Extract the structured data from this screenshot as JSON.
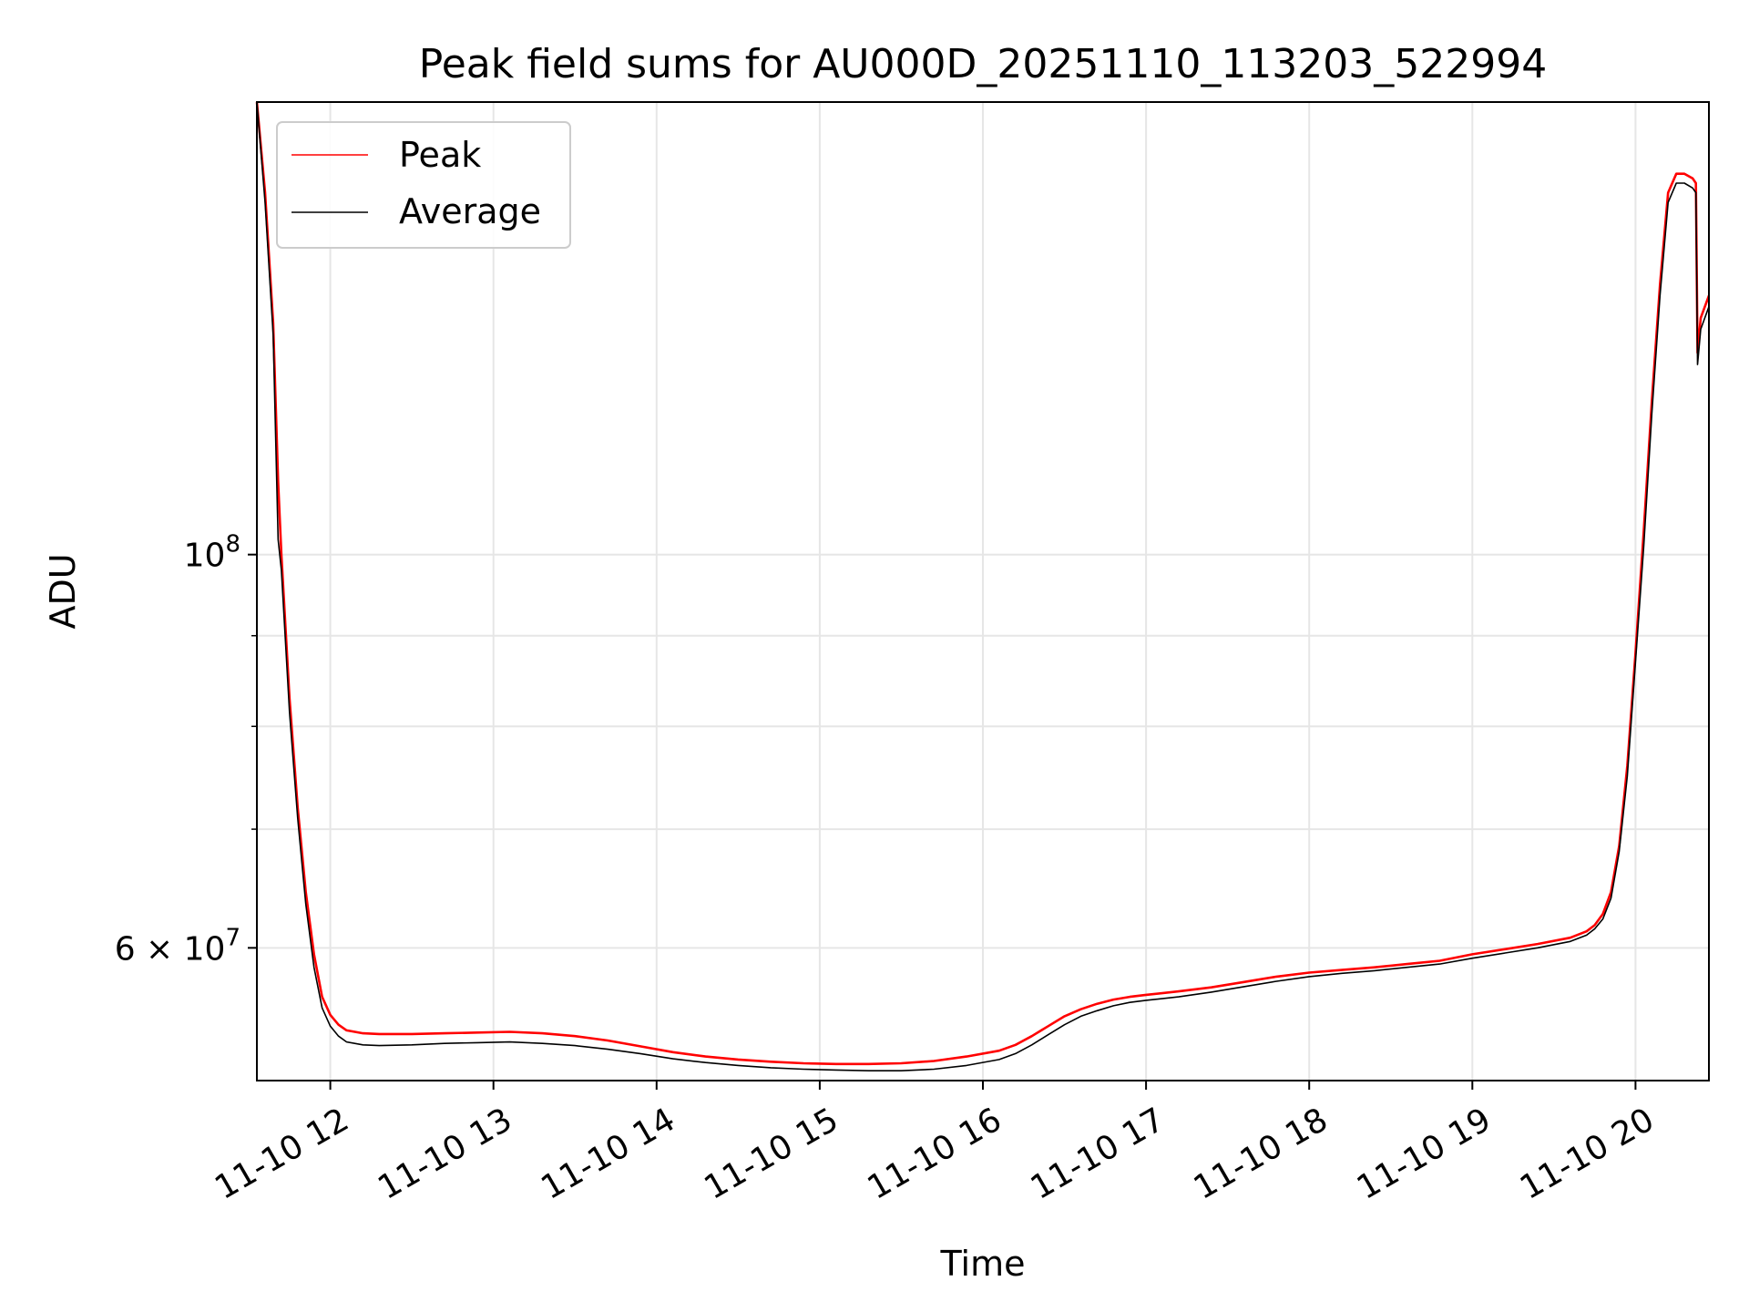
{
  "chart_data": {
    "type": "line",
    "title": "Peak field sums for AU000D_20251110_113203_522994",
    "xlabel": "Time",
    "ylabel": "ADU",
    "xlim": [
      11.55,
      20.45
    ],
    "ylim": [
      50500000,
      180000000
    ],
    "yscale": "log",
    "grid": true,
    "legend_position": "upper-left",
    "x_ticks": [
      {
        "value": 12,
        "label": "11-10 12"
      },
      {
        "value": 13,
        "label": "11-10 13"
      },
      {
        "value": 14,
        "label": "11-10 14"
      },
      {
        "value": 15,
        "label": "11-10 15"
      },
      {
        "value": 16,
        "label": "11-10 16"
      },
      {
        "value": 17,
        "label": "11-10 17"
      },
      {
        "value": 18,
        "label": "11-10 18"
      },
      {
        "value": 19,
        "label": "11-10 19"
      },
      {
        "value": 20,
        "label": "11-10 20"
      }
    ],
    "y_major_ticks": [
      {
        "value": 60000000,
        "base": "6 × 10",
        "exp": "7"
      },
      {
        "value": 100000000,
        "base": "10",
        "exp": "8"
      }
    ],
    "y_minor_ticks": [
      70000000,
      80000000,
      90000000,
      200000000
    ],
    "series": [
      {
        "name": "Peak",
        "color": "#ff0000",
        "x": [
          11.55,
          11.6,
          11.65,
          11.68,
          11.7,
          11.75,
          11.8,
          11.85,
          11.9,
          11.95,
          12.0,
          12.05,
          12.1,
          12.2,
          12.3,
          12.5,
          12.7,
          12.9,
          13.1,
          13.3,
          13.5,
          13.7,
          13.9,
          14.1,
          14.3,
          14.5,
          14.7,
          14.9,
          15.1,
          15.3,
          15.5,
          15.7,
          15.9,
          16.1,
          16.2,
          16.3,
          16.4,
          16.5,
          16.6,
          16.7,
          16.8,
          16.9,
          17.0,
          17.2,
          17.4,
          17.6,
          17.8,
          18.0,
          18.2,
          18.4,
          18.6,
          18.8,
          19.0,
          19.2,
          19.4,
          19.6,
          19.7,
          19.75,
          19.8,
          19.85,
          19.9,
          19.95,
          20.0,
          20.05,
          20.1,
          20.15,
          20.2,
          20.25,
          20.3,
          20.35,
          20.37,
          20.38,
          20.4,
          20.45
        ],
        "y": [
          180000000,
          160000000,
          135000000,
          110000000,
          100000000,
          83000000,
          72000000,
          64500000,
          59500000,
          56300000,
          55000000,
          54300000,
          53900000,
          53700000,
          53650000,
          53650000,
          53700000,
          53750000,
          53800000,
          53700000,
          53500000,
          53200000,
          52800000,
          52400000,
          52100000,
          51900000,
          51750000,
          51650000,
          51600000,
          51600000,
          51650000,
          51800000,
          52100000,
          52500000,
          52900000,
          53500000,
          54200000,
          54900000,
          55400000,
          55800000,
          56100000,
          56300000,
          56450000,
          56700000,
          57000000,
          57400000,
          57800000,
          58100000,
          58300000,
          58500000,
          58750000,
          59000000,
          59500000,
          59900000,
          60300000,
          60800000,
          61300000,
          61800000,
          62700000,
          64500000,
          68500000,
          76000000,
          88000000,
          103000000,
          122000000,
          142000000,
          160000000,
          164000000,
          164000000,
          163000000,
          162000000,
          130000000,
          136000000,
          140000000
        ]
      },
      {
        "name": "Average",
        "color": "#000000",
        "x": [
          11.55,
          11.6,
          11.65,
          11.68,
          11.7,
          11.75,
          11.8,
          11.85,
          11.9,
          11.95,
          12.0,
          12.05,
          12.1,
          12.2,
          12.3,
          12.5,
          12.7,
          12.9,
          13.1,
          13.3,
          13.5,
          13.7,
          13.9,
          14.1,
          14.3,
          14.5,
          14.7,
          14.9,
          15.1,
          15.3,
          15.5,
          15.7,
          15.9,
          16.1,
          16.2,
          16.3,
          16.4,
          16.5,
          16.6,
          16.7,
          16.8,
          16.9,
          17.0,
          17.2,
          17.4,
          17.6,
          17.8,
          18.0,
          18.2,
          18.4,
          18.6,
          18.8,
          19.0,
          19.2,
          19.4,
          19.6,
          19.7,
          19.75,
          19.8,
          19.85,
          19.9,
          19.95,
          20.0,
          20.05,
          20.1,
          20.15,
          20.2,
          20.25,
          20.3,
          20.35,
          20.37,
          20.38,
          20.4,
          20.45
        ],
        "y": [
          180000000,
          158000000,
          133000000,
          102000000,
          98000000,
          81500000,
          71000000,
          63500000,
          58500000,
          55500000,
          54200000,
          53500000,
          53100000,
          52900000,
          52850000,
          52900000,
          53000000,
          53050000,
          53100000,
          53000000,
          52850000,
          52600000,
          52300000,
          51950000,
          51700000,
          51500000,
          51350000,
          51250000,
          51200000,
          51150000,
          51150000,
          51250000,
          51500000,
          51900000,
          52300000,
          52900000,
          53600000,
          54300000,
          54900000,
          55300000,
          55650000,
          55900000,
          56050000,
          56300000,
          56650000,
          57050000,
          57450000,
          57800000,
          58050000,
          58250000,
          58500000,
          58750000,
          59200000,
          59600000,
          60000000,
          60500000,
          61000000,
          61500000,
          62300000,
          64000000,
          68000000,
          75000000,
          87000000,
          101000000,
          120000000,
          140000000,
          158000000,
          162000000,
          162000000,
          161000000,
          160000000,
          128000000,
          134000000,
          138000000
        ]
      }
    ]
  }
}
